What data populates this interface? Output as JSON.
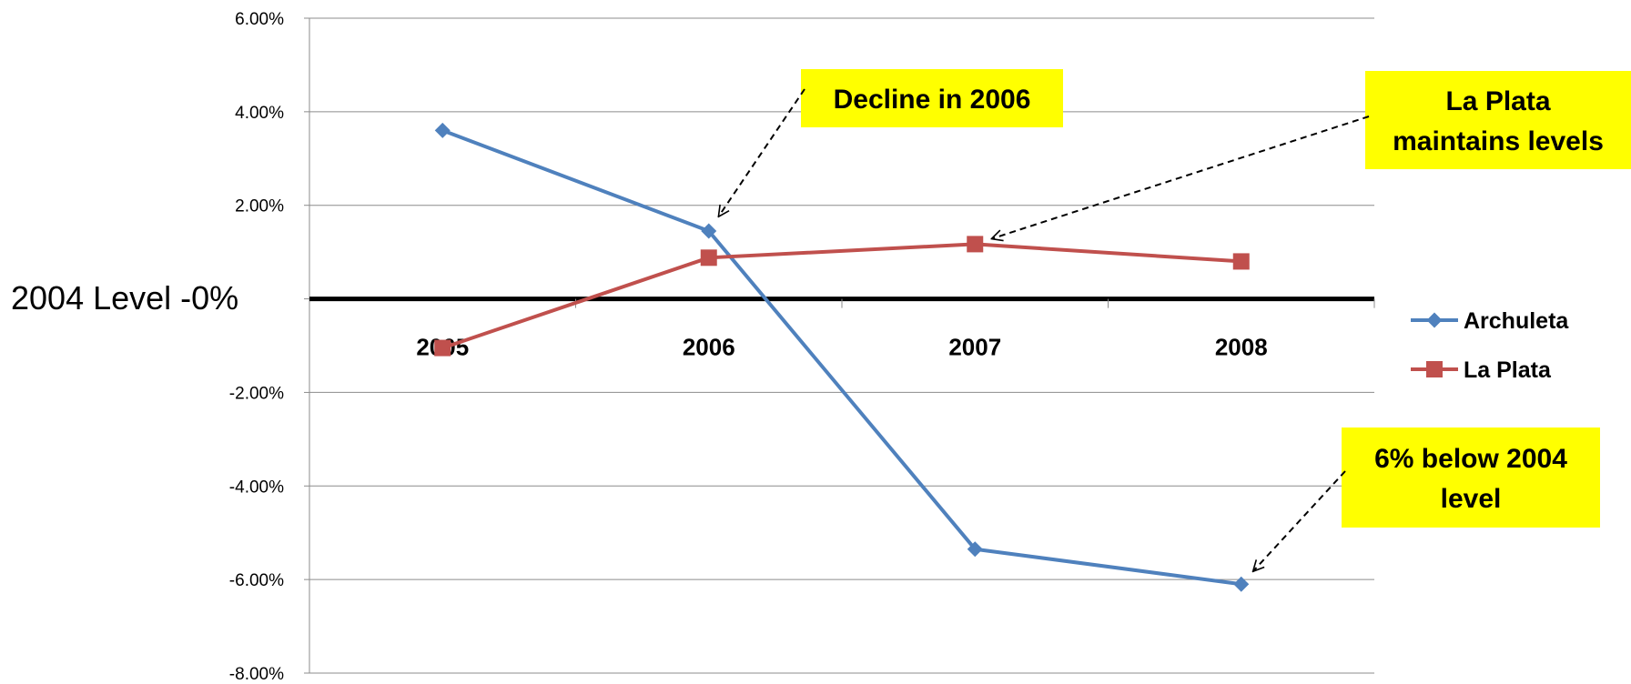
{
  "chart_data": {
    "type": "line",
    "title": "",
    "xlabel": "",
    "ylabel": "2004 Level -0%",
    "categories": [
      "2005",
      "2006",
      "2007",
      "2008"
    ],
    "y_ticks": [
      "6.00%",
      "4.00%",
      "2.00%",
      "",
      "-2.00%",
      "-4.00%",
      "-6.00%",
      "-8.00%"
    ],
    "ylim": [
      -8,
      6
    ],
    "y_unit": "%",
    "grid": true,
    "legend_position": "right",
    "series": [
      {
        "name": "Archuleta",
        "values": [
          3.6,
          1.45,
          -5.35,
          -6.1
        ],
        "color": "#4F81BD",
        "marker": "diamond"
      },
      {
        "name": "La Plata",
        "values": [
          -1.05,
          0.88,
          1.17,
          0.8
        ],
        "color": "#C0504D",
        "marker": "square"
      }
    ],
    "annotations": [
      {
        "lines": [
          "Decline in 2006"
        ],
        "background": "#FFFF00",
        "target": {
          "series": "Archuleta",
          "category": "2006"
        }
      },
      {
        "lines": [
          "La Plata",
          "maintains levels"
        ],
        "background": "#FFFF00",
        "target": {
          "series": "La Plata",
          "category": "2007"
        }
      },
      {
        "lines": [
          "6% below 2004",
          "level"
        ],
        "background": "#FFFF00",
        "target": {
          "series": "Archuleta",
          "category": "2008"
        }
      }
    ]
  }
}
